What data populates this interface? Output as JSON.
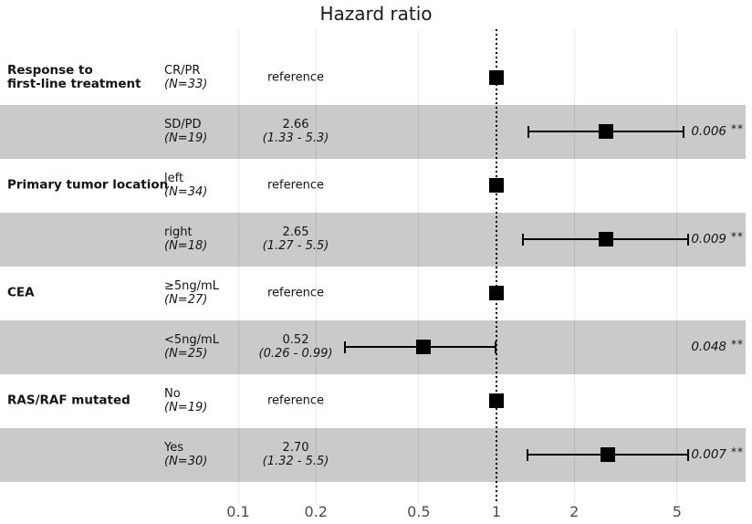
{
  "title": "Hazard ratio",
  "chart_data": {
    "type": "forest",
    "title": "Hazard ratio",
    "x_scale": "log10",
    "x_axis_range": [
      0.1,
      5.5
    ],
    "x_ticks": [
      0.1,
      0.2,
      0.5,
      1,
      2,
      5
    ],
    "x_tick_labels": [
      "0.1",
      "0.2",
      "0.5",
      "1",
      "2",
      "5"
    ],
    "reference_line": 1,
    "colors": {
      "band": "#cacaca",
      "marker": "#000000",
      "gridline": "#e6e6e6",
      "axis_text": "#4d4d4d"
    },
    "legend": "none",
    "rows": [
      {
        "variable": "Response to\nfirst-line treatment",
        "level": "CR/PR",
        "n_label": "(N=33)",
        "estimate_label": "reference",
        "ci_label": "",
        "hr": 1,
        "ci_low": null,
        "ci_high": null,
        "p_label": "",
        "sig": "",
        "shaded": false,
        "reference": true
      },
      {
        "variable": "",
        "level": "SD/PD",
        "n_label": "(N=19)",
        "estimate_label": "2.66",
        "ci_label": "(1.33 - 5.3)",
        "hr": 2.66,
        "ci_low": 1.33,
        "ci_high": 5.3,
        "p_label": "0.006",
        "sig": "**",
        "shaded": true,
        "reference": false
      },
      {
        "variable": "Primary tumor location",
        "level": "left",
        "n_label": "(N=34)",
        "estimate_label": "reference",
        "ci_label": "",
        "hr": 1,
        "ci_low": null,
        "ci_high": null,
        "p_label": "",
        "sig": "",
        "shaded": false,
        "reference": true
      },
      {
        "variable": "",
        "level": "right",
        "n_label": "(N=18)",
        "estimate_label": "2.65",
        "ci_label": "(1.27 - 5.5)",
        "hr": 2.65,
        "ci_low": 1.27,
        "ci_high": 5.5,
        "p_label": "0.009",
        "sig": "**",
        "shaded": true,
        "reference": false
      },
      {
        "variable": "CEA",
        "level": "≥5ng/mL",
        "n_label": "(N=27)",
        "estimate_label": "reference",
        "ci_label": "",
        "hr": 1,
        "ci_low": null,
        "ci_high": null,
        "p_label": "",
        "sig": "",
        "shaded": false,
        "reference": true
      },
      {
        "variable": "",
        "level": "<5ng/mL",
        "n_label": "(N=25)",
        "estimate_label": "0.52",
        "ci_label": "(0.26 - 0.99)",
        "hr": 0.52,
        "ci_low": 0.26,
        "ci_high": 0.99,
        "p_label": "0.048",
        "sig": "**",
        "shaded": true,
        "reference": false
      },
      {
        "variable": "RAS/RAF mutated",
        "level": "No",
        "n_label": "(N=19)",
        "estimate_label": "reference",
        "ci_label": "",
        "hr": 1,
        "ci_low": null,
        "ci_high": null,
        "p_label": "",
        "sig": "",
        "shaded": false,
        "reference": true
      },
      {
        "variable": "",
        "level": "Yes",
        "n_label": "(N=30)",
        "estimate_label": "2.70",
        "ci_label": "(1.32 - 5.5)",
        "hr": 2.7,
        "ci_low": 1.32,
        "ci_high": 5.5,
        "p_label": "0.007",
        "sig": "**",
        "shaded": true,
        "reference": false
      }
    ]
  }
}
